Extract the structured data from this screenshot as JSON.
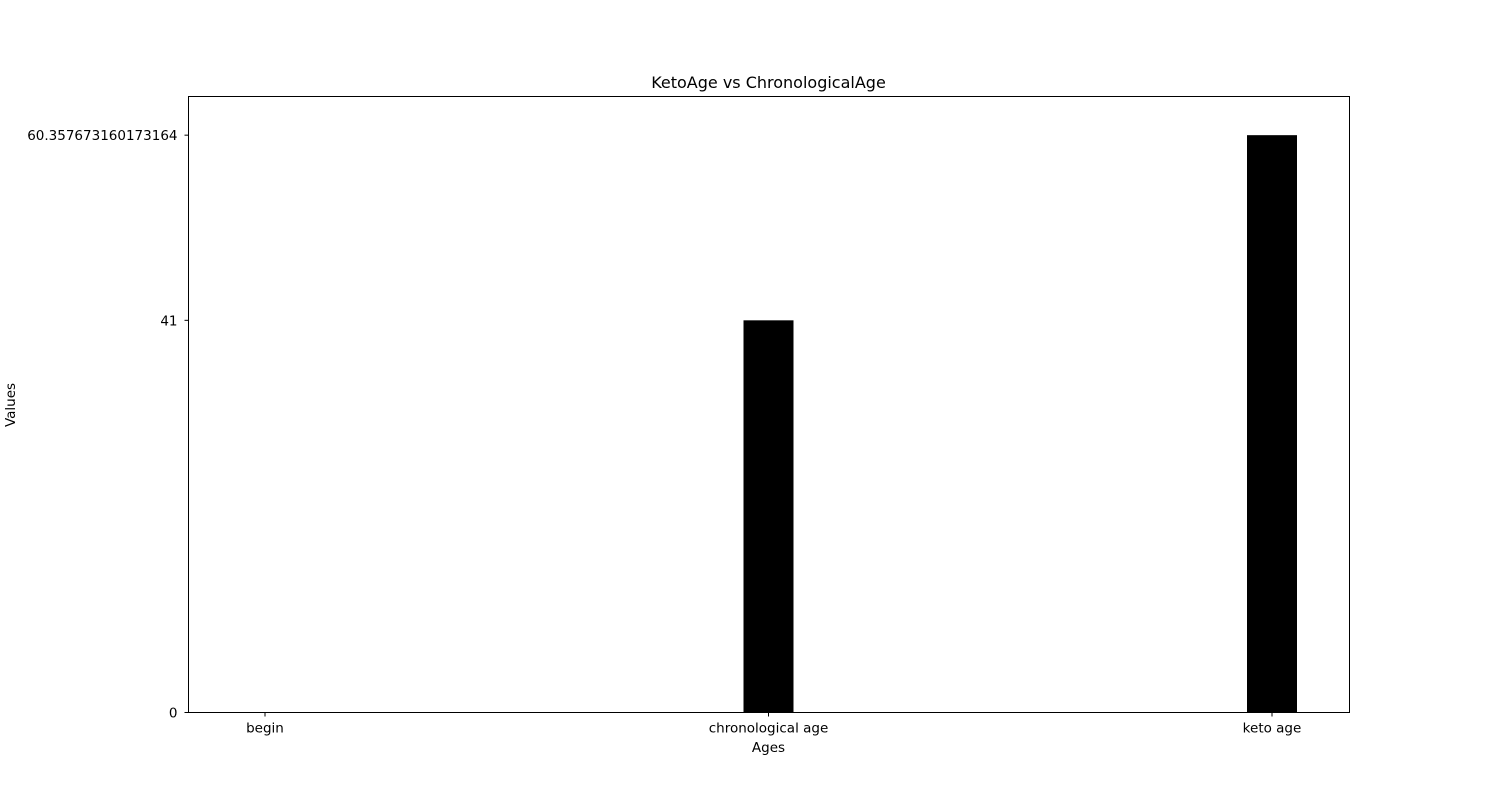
{
  "chart_data": {
    "type": "bar",
    "title": "KetoAge vs ChronologicalAge",
    "xlabel": "Ages",
    "ylabel": "Values",
    "categories": [
      "begin",
      "chronological age",
      "keto age"
    ],
    "values": [
      0,
      41,
      60.357673160173164
    ],
    "yticks": [
      0,
      41,
      60.357673160173164
    ],
    "ytick_labels": [
      "0",
      "41",
      "60.357673160173164"
    ],
    "ylim": [
      0,
      64.4
    ],
    "bar_color": "#000000",
    "grid": false,
    "legend": "none"
  }
}
